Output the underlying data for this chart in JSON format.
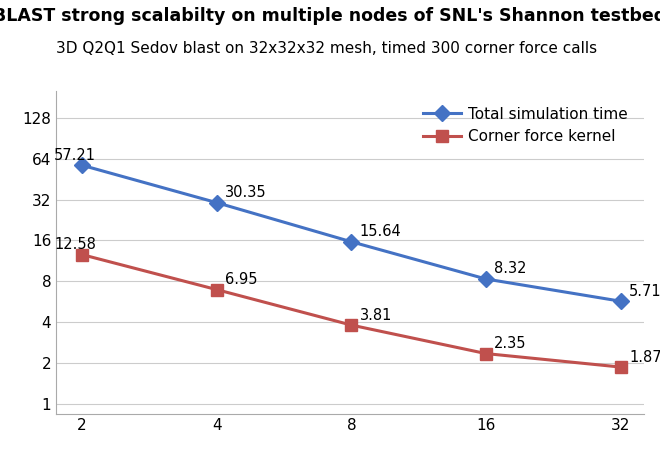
{
  "title": "BLAST strong scalabilty on multiple nodes of SNL's Shannon testbed",
  "subtitle": "3D Q2Q1 Sedov blast on 32x32x32 mesh, timed 300 corner force calls",
  "x_values": [
    2,
    4,
    8,
    16,
    32
  ],
  "total_sim_time": [
    57.21,
    30.35,
    15.64,
    8.32,
    5.71
  ],
  "corner_force_kernel": [
    12.58,
    6.95,
    3.81,
    2.35,
    1.87
  ],
  "line1_color": "#4472C4",
  "line2_color": "#C0504D",
  "marker1": "D",
  "marker2": "s",
  "legend_label1": "Total simulation time",
  "legend_label2": "Corner force kernel",
  "yticks": [
    1,
    2,
    4,
    8,
    16,
    32,
    64,
    128
  ],
  "ylim_bottom": 0.85,
  "ylim_top": 200,
  "xlim_left": 1.75,
  "xlim_right": 36,
  "background_color": "#FFFFFF",
  "title_fontsize": 12.5,
  "subtitle_fontsize": 11,
  "label_fontsize": 11,
  "annotation_fontsize": 10.5
}
